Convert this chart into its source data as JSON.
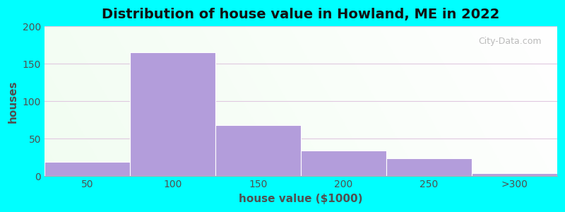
{
  "title": "Distribution of house value in Howland, ME in 2022",
  "xlabel": "house value ($1000)",
  "ylabel": "houses",
  "bar_labels": [
    "50",
    "100",
    "150",
    "200",
    "250",
    ">300"
  ],
  "bar_heights": [
    19,
    165,
    68,
    34,
    24,
    4
  ],
  "bar_color": "#b39ddb",
  "bar_edgecolor": "#ffffff",
  "ylim": [
    0,
    200
  ],
  "yticks": [
    0,
    50,
    100,
    150,
    200
  ],
  "background_color": "#00ffff",
  "grid_color": "#e0c8e0",
  "title_fontsize": 14,
  "axis_fontsize": 11,
  "tick_fontsize": 10,
  "watermark": "City-Data.com"
}
